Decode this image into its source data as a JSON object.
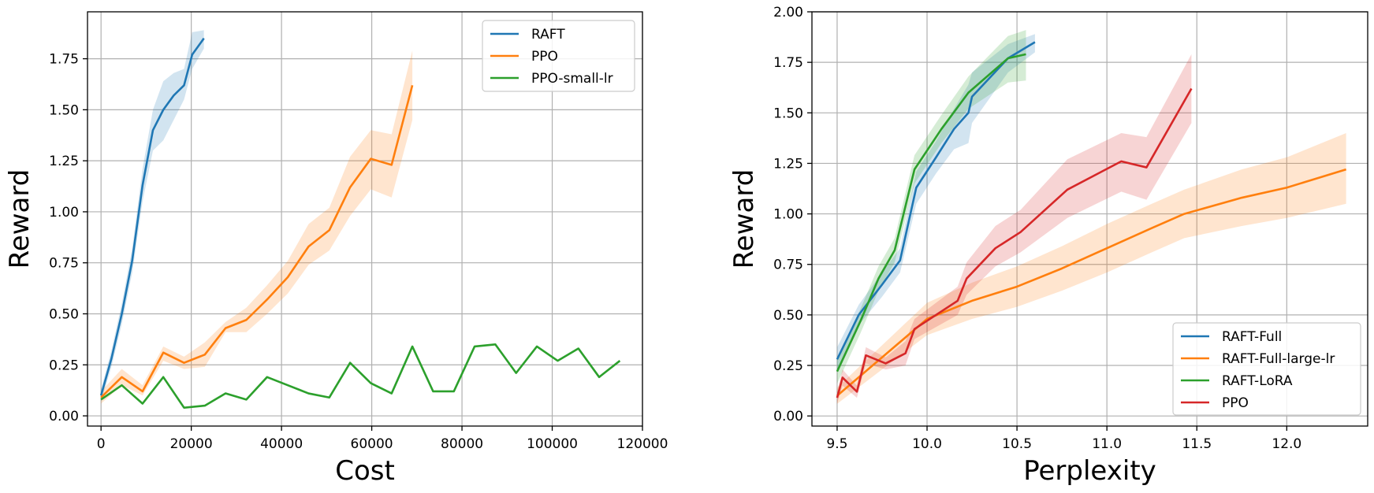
{
  "chart_data": [
    {
      "type": "line",
      "xlabel": "Cost",
      "ylabel": "Reward",
      "xlim": [
        -3000,
        120000
      ],
      "ylim": [
        -0.05,
        1.98
      ],
      "xticks": [
        0,
        20000,
        40000,
        60000,
        80000,
        100000,
        120000
      ],
      "xtick_labels": [
        "0",
        "20000",
        "40000",
        "60000",
        "80000",
        "100000",
        "120000"
      ],
      "yticks": [
        0,
        0.25,
        0.5,
        0.75,
        1.0,
        1.25,
        1.5,
        1.75
      ],
      "ytick_labels": [
        "0.00",
        "0.25",
        "0.50",
        "0.75",
        "1.00",
        "1.25",
        "1.50",
        "1.75"
      ],
      "grid": true,
      "legend_position": "top-right",
      "series": [
        {
          "name": "RAFT",
          "color": "#1f77b4",
          "x": [
            0,
            2300,
            4600,
            6900,
            9200,
            11500,
            13800,
            16100,
            18400,
            20200,
            22800
          ],
          "y": [
            0.1,
            0.28,
            0.5,
            0.76,
            1.13,
            1.4,
            1.5,
            1.57,
            1.62,
            1.77,
            1.85
          ],
          "lower": [
            0.07,
            0.24,
            0.45,
            0.7,
            1.05,
            1.3,
            1.35,
            1.45,
            1.55,
            1.7,
            1.8
          ],
          "upper": [
            0.13,
            0.32,
            0.55,
            0.82,
            1.21,
            1.5,
            1.64,
            1.68,
            1.7,
            1.88,
            1.89
          ]
        },
        {
          "name": "PPO",
          "color": "#ff7f0e",
          "x": [
            0,
            4600,
            9200,
            13800,
            18400,
            23000,
            27600,
            32200,
            36800,
            41400,
            46000,
            50600,
            55200,
            59800,
            64400,
            69000
          ],
          "y": [
            0.09,
            0.19,
            0.12,
            0.31,
            0.26,
            0.3,
            0.43,
            0.47,
            0.57,
            0.68,
            0.83,
            0.91,
            1.12,
            1.26,
            1.23,
            1.62
          ],
          "lower": [
            0.06,
            0.15,
            0.1,
            0.27,
            0.23,
            0.24,
            0.41,
            0.41,
            0.5,
            0.6,
            0.74,
            0.81,
            0.98,
            1.11,
            1.07,
            1.45
          ],
          "upper": [
            0.12,
            0.23,
            0.15,
            0.34,
            0.29,
            0.36,
            0.46,
            0.53,
            0.64,
            0.76,
            0.94,
            1.02,
            1.27,
            1.4,
            1.38,
            1.79
          ]
        },
        {
          "name": "PPO-small-lr",
          "color": "#2ca02c",
          "x": [
            0,
            4600,
            9200,
            13800,
            18400,
            23000,
            27600,
            32200,
            36800,
            41400,
            46000,
            50600,
            55200,
            59800,
            64400,
            69000,
            73600,
            78200,
            82800,
            87400,
            92000,
            96600,
            101200,
            105800,
            110400,
            115000
          ],
          "y": [
            0.08,
            0.15,
            0.06,
            0.19,
            0.04,
            0.05,
            0.11,
            0.08,
            0.19,
            0.15,
            0.11,
            0.09,
            0.26,
            0.16,
            0.11,
            0.34,
            0.12,
            0.12,
            0.34,
            0.35,
            0.21,
            0.34,
            0.27,
            0.33,
            0.19,
            0.27
          ]
        }
      ]
    },
    {
      "type": "line",
      "xlabel": "Perplexity",
      "ylabel": "Reward",
      "xlim": [
        9.36,
        12.45
      ],
      "ylim": [
        -0.05,
        2.0
      ],
      "xticks": [
        9.5,
        10.0,
        10.5,
        11.0,
        11.5,
        12.0
      ],
      "xtick_labels": [
        "9.5",
        "10.0",
        "10.5",
        "11.0",
        "11.5",
        "12.0"
      ],
      "yticks": [
        0,
        0.25,
        0.5,
        0.75,
        1.0,
        1.25,
        1.5,
        1.75,
        2.0
      ],
      "ytick_labels": [
        "0.00",
        "0.25",
        "0.50",
        "0.75",
        "1.00",
        "1.25",
        "1.50",
        "1.75",
        "2.00"
      ],
      "grid": true,
      "legend_position": "bottom-right",
      "series": [
        {
          "name": "RAFT-Full",
          "color": "#1f77b4",
          "x": [
            9.5,
            9.62,
            9.75,
            9.85,
            9.94,
            10.05,
            10.15,
            10.23,
            10.25,
            10.45,
            10.6
          ],
          "y": [
            0.28,
            0.5,
            0.65,
            0.77,
            1.13,
            1.28,
            1.42,
            1.5,
            1.58,
            1.77,
            1.85
          ],
          "lower": [
            0.22,
            0.45,
            0.59,
            0.71,
            1.05,
            1.2,
            1.32,
            1.35,
            1.45,
            1.7,
            1.8
          ],
          "upper": [
            0.34,
            0.55,
            0.71,
            0.83,
            1.21,
            1.36,
            1.52,
            1.64,
            1.7,
            1.84,
            1.89
          ]
        },
        {
          "name": "RAFT-Full-large-lr",
          "color": "#ff7f0e",
          "x": [
            9.5,
            9.75,
            10.0,
            10.25,
            10.5,
            10.75,
            11.0,
            11.25,
            11.43,
            11.75,
            12.0,
            12.33
          ],
          "y": [
            0.1,
            0.29,
            0.48,
            0.57,
            0.64,
            0.73,
            0.83,
            0.93,
            1.0,
            1.08,
            1.13,
            1.22
          ],
          "lower": [
            0.06,
            0.23,
            0.4,
            0.48,
            0.54,
            0.62,
            0.71,
            0.81,
            0.88,
            0.94,
            0.98,
            1.05
          ],
          "upper": [
            0.14,
            0.35,
            0.56,
            0.66,
            0.74,
            0.84,
            0.95,
            1.05,
            1.12,
            1.22,
            1.28,
            1.4
          ]
        },
        {
          "name": "RAFT-LoRA",
          "color": "#2ca02c",
          "x": [
            9.5,
            9.63,
            9.73,
            9.82,
            9.93,
            10.08,
            10.23,
            10.45,
            10.55
          ],
          "y": [
            0.22,
            0.47,
            0.68,
            0.82,
            1.22,
            1.42,
            1.6,
            1.77,
            1.79
          ],
          "lower": [
            0.16,
            0.41,
            0.62,
            0.76,
            1.15,
            1.35,
            1.52,
            1.65,
            1.66
          ],
          "upper": [
            0.28,
            0.53,
            0.74,
            0.88,
            1.29,
            1.49,
            1.68,
            1.88,
            1.91
          ]
        },
        {
          "name": "PPO",
          "color": "#d62728",
          "x": [
            9.5,
            9.53,
            9.61,
            9.66,
            9.77,
            9.88,
            9.93,
            10.17,
            10.22,
            10.38,
            10.52,
            10.78,
            11.08,
            11.22,
            11.47
          ],
          "y": [
            0.09,
            0.19,
            0.12,
            0.3,
            0.26,
            0.31,
            0.43,
            0.57,
            0.68,
            0.83,
            0.91,
            1.12,
            1.26,
            1.23,
            1.62
          ],
          "lower": [
            0.06,
            0.15,
            0.09,
            0.26,
            0.23,
            0.25,
            0.38,
            0.5,
            0.6,
            0.74,
            0.81,
            0.98,
            1.11,
            1.07,
            1.45
          ],
          "upper": [
            0.12,
            0.23,
            0.15,
            0.34,
            0.29,
            0.37,
            0.48,
            0.64,
            0.76,
            0.94,
            1.02,
            1.27,
            1.4,
            1.38,
            1.79
          ]
        }
      ]
    }
  ]
}
